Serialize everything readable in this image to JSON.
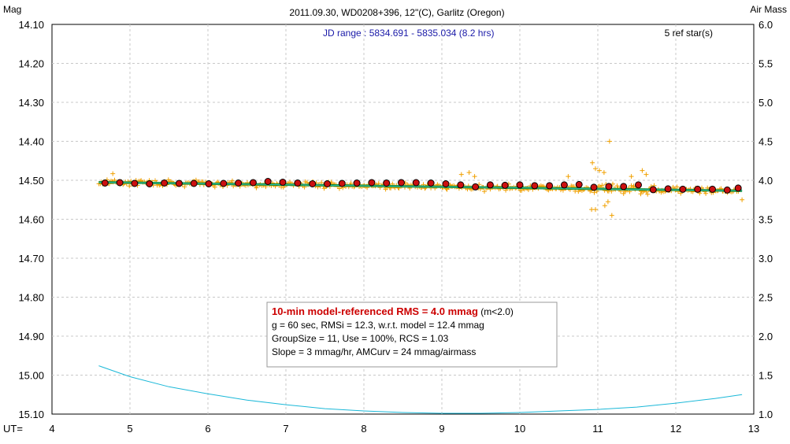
{
  "chart_data": {
    "type": "scatter",
    "title": "2011.09.30, WD0208+396, 12\"(C), Garlitz (Oregon)",
    "ylabel_left": "Mag",
    "ylabel_right": "Air Mass",
    "xlabel": "UT=",
    "jd_range_text": "JD range : 5834.691 - 5835.034 (8.2 hrs)",
    "ref_stars_text": "5 ref star(s)",
    "xlim": [
      4,
      13
    ],
    "ylim_mag": [
      14.1,
      15.1
    ],
    "ylim_airmass": [
      1.0,
      6.0
    ],
    "x_ticks": [
      "4",
      "5",
      "6",
      "7",
      "8",
      "9",
      "10",
      "11",
      "12",
      "13"
    ],
    "y_ticks_left": [
      "14.10",
      "14.20",
      "14.30",
      "14.40",
      "14.50",
      "14.60",
      "14.70",
      "14.80",
      "14.90",
      "15.00",
      "15.10"
    ],
    "y_ticks_right": [
      "6.0",
      "5.5",
      "5.0",
      "4.5",
      "4.0",
      "3.5",
      "3.0",
      "2.5",
      "2.0",
      "1.5",
      "1.0"
    ],
    "grid": true,
    "stats_box": {
      "headline": "10-min model-referenced RMS = 4.0 mmag",
      "headline_suffix": " (m<2.0)",
      "lines": [
        "g = 60 sec, RMSi = 12.3, w.r.t. model = 12.4 mmag",
        "GroupSize = 11, Use = 100%, RCS = 1.03",
        "Slope = 3 mmag/hr, AMCurv = 24 mmag/airmass"
      ]
    },
    "series": [
      {
        "role": "individual measurements",
        "marker": "plus",
        "color": "#f0a000",
        "x_range": [
          4.6,
          12.8
        ],
        "count": 480,
        "mean_mag_start": 14.505,
        "mean_mag_end": 14.527,
        "scatter_mag": 0.009,
        "outliers": [
          {
            "x": 10.93,
            "y": 14.455
          },
          {
            "x": 10.97,
            "y": 14.47
          },
          {
            "x": 11.02,
            "y": 14.475
          },
          {
            "x": 11.08,
            "y": 14.48
          },
          {
            "x": 11.15,
            "y": 14.4
          },
          {
            "x": 10.92,
            "y": 14.575
          },
          {
            "x": 10.97,
            "y": 14.575
          },
          {
            "x": 11.09,
            "y": 14.565
          },
          {
            "x": 11.13,
            "y": 14.555
          },
          {
            "x": 11.18,
            "y": 14.59
          },
          {
            "x": 11.43,
            "y": 14.49
          },
          {
            "x": 11.62,
            "y": 14.485
          },
          {
            "x": 11.57,
            "y": 14.475
          },
          {
            "x": 9.25,
            "y": 14.485
          },
          {
            "x": 9.35,
            "y": 14.48
          },
          {
            "x": 9.42,
            "y": 14.49
          },
          {
            "x": 10.62,
            "y": 14.49
          },
          {
            "x": 12.85,
            "y": 14.55
          },
          {
            "x": 4.78,
            "y": 14.483
          },
          {
            "x": 11.55,
            "y": 14.535
          }
        ]
      },
      {
        "role": "group averages",
        "marker": "circle",
        "color": "#cc1010",
        "x": [
          4.68,
          4.87,
          5.06,
          5.25,
          5.44,
          5.63,
          5.82,
          6.01,
          6.2,
          6.39,
          6.58,
          6.77,
          6.96,
          7.15,
          7.34,
          7.53,
          7.72,
          7.91,
          8.1,
          8.29,
          8.48,
          8.67,
          8.86,
          9.05,
          9.24,
          9.43,
          9.62,
          9.81,
          10.0,
          10.19,
          10.38,
          10.57,
          10.76,
          10.95,
          11.14,
          11.33,
          11.52,
          11.71,
          11.9,
          12.09,
          12.28,
          12.47,
          12.66,
          12.8
        ],
        "y": [
          14.507,
          14.506,
          14.508,
          14.509,
          14.507,
          14.508,
          14.508,
          14.509,
          14.508,
          14.507,
          14.506,
          14.503,
          14.505,
          14.507,
          14.509,
          14.509,
          14.508,
          14.507,
          14.506,
          14.507,
          14.506,
          14.506,
          14.507,
          14.509,
          14.512,
          14.517,
          14.512,
          14.513,
          14.512,
          14.514,
          14.514,
          14.512,
          14.511,
          14.518,
          14.516,
          14.516,
          14.512,
          14.524,
          14.522,
          14.523,
          14.523,
          14.523,
          14.525,
          14.52
        ]
      },
      {
        "role": "model fit",
        "marker": "line",
        "color": "#178a30",
        "x": [
          4.6,
          12.85
        ],
        "y": [
          14.505,
          14.527
        ]
      },
      {
        "role": "air mass",
        "axis": "right",
        "marker": "line",
        "color": "#1ab8d8",
        "x": [
          4.6,
          5.0,
          5.5,
          6.0,
          6.5,
          7.0,
          7.5,
          8.0,
          8.5,
          9.0,
          9.5,
          10.0,
          10.5,
          11.0,
          11.5,
          12.0,
          12.5,
          12.85
        ],
        "y": [
          1.62,
          1.48,
          1.35,
          1.26,
          1.18,
          1.12,
          1.07,
          1.04,
          1.02,
          1.01,
          1.01,
          1.02,
          1.04,
          1.06,
          1.09,
          1.14,
          1.2,
          1.25
        ]
      }
    ]
  }
}
